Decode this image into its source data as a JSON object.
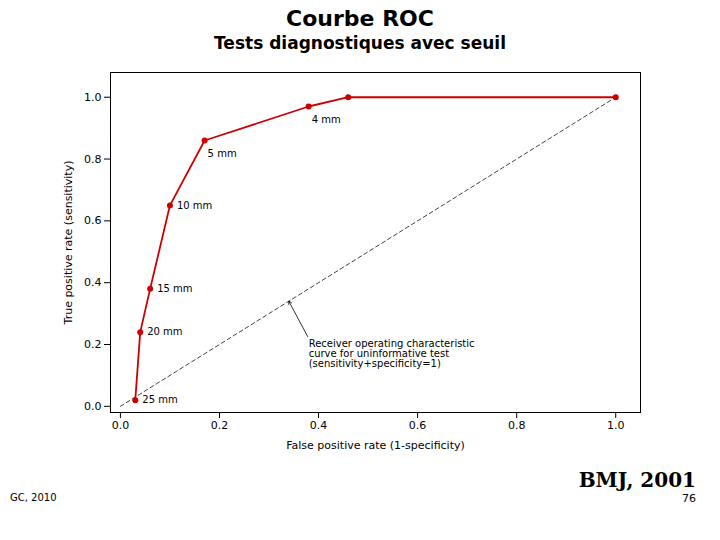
{
  "chart_data": {
    "type": "line",
    "title": "Courbe ROC",
    "subtitle": "Tests diagnostiques avec seuil",
    "x": [
      0.03,
      0.04,
      0.06,
      0.1,
      0.17,
      0.38,
      0.46,
      1.0
    ],
    "values": [
      0.02,
      0.24,
      0.38,
      0.65,
      0.86,
      0.97,
      1.0,
      1.0
    ],
    "point_labels": [
      "25 mm",
      "20 mm",
      "15 mm",
      "10 mm",
      "5 mm",
      "4 mm",
      null,
      null
    ],
    "color": "#cc0000",
    "marker": "circle",
    "reference_line": {
      "x": [
        0,
        1
      ],
      "y": [
        0,
        1
      ],
      "color": "#444444",
      "line_style": "dashed"
    },
    "annotation": {
      "text": "Receiver operating characteristic\ncurve for uninformative test\n(sensitivity+specificity=1)",
      "xy": [
        0.34,
        0.34
      ],
      "xytext": [
        0.38,
        0.22
      ]
    },
    "xlabel": "False positive rate (1-specificity)",
    "ylabel": "True positive rate (sensitivity)",
    "xlim": [
      -0.02,
      1.05
    ],
    "ylim": [
      -0.02,
      1.08
    ],
    "xticks": [
      {
        "value": 0.0,
        "label": "0.0"
      },
      0.2,
      0.4,
      0.6,
      0.8,
      {
        "value": 1.0,
        "label": "1.0"
      }
    ],
    "yticks": [
      {
        "value": 0.0,
        "label": "0.0"
      },
      0.2,
      0.4,
      0.6,
      0.8,
      {
        "value": 1.0,
        "label": "1.0"
      }
    ],
    "grid": false,
    "source": "BMJ, 2001",
    "page_number": "76",
    "credit": "GC, 2010"
  }
}
